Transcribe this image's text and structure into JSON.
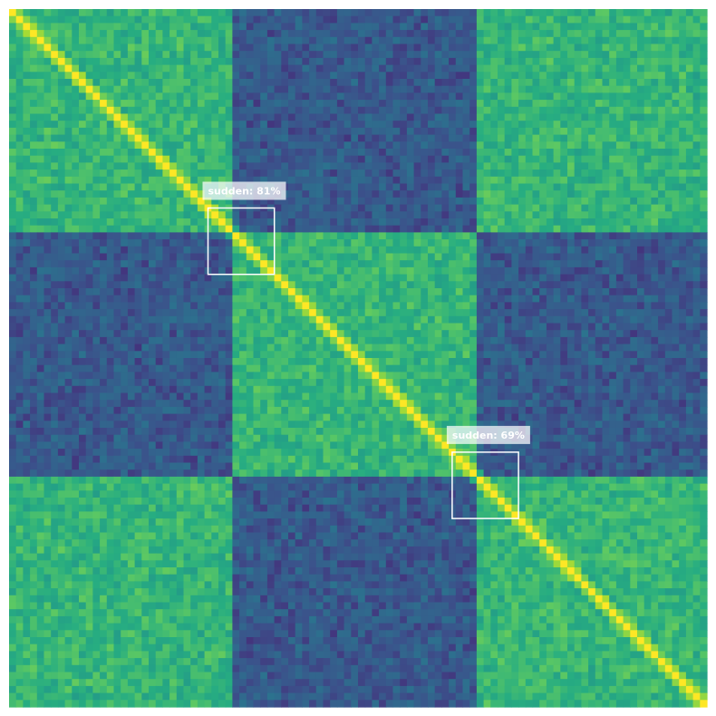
{
  "chart_data": {
    "type": "heatmap",
    "title": "",
    "xlabel": "",
    "ylabel": "",
    "colormap": "viridis",
    "axes_visible": false,
    "grid": false,
    "legend": "none",
    "value_range": [
      0,
      1
    ],
    "matrix_size": 100,
    "segments": [
      {
        "start": 0,
        "end": 32,
        "group": "A"
      },
      {
        "start": 32,
        "end": 67,
        "group": "B"
      },
      {
        "start": 67,
        "end": 100,
        "group": "A"
      }
    ],
    "similarity": {
      "same_group": 0.66,
      "cross_group": 0.28,
      "diagonal": 1.0
    },
    "annotations": [
      {
        "label": "sudden: 81%",
        "type": "sudden",
        "confidence": 0.81,
        "region_start": 28.5,
        "region_end": 38
      },
      {
        "label": "sudden: 69%",
        "type": "sudden",
        "confidence": 0.69,
        "region_start": 63.5,
        "region_end": 73
      }
    ]
  }
}
